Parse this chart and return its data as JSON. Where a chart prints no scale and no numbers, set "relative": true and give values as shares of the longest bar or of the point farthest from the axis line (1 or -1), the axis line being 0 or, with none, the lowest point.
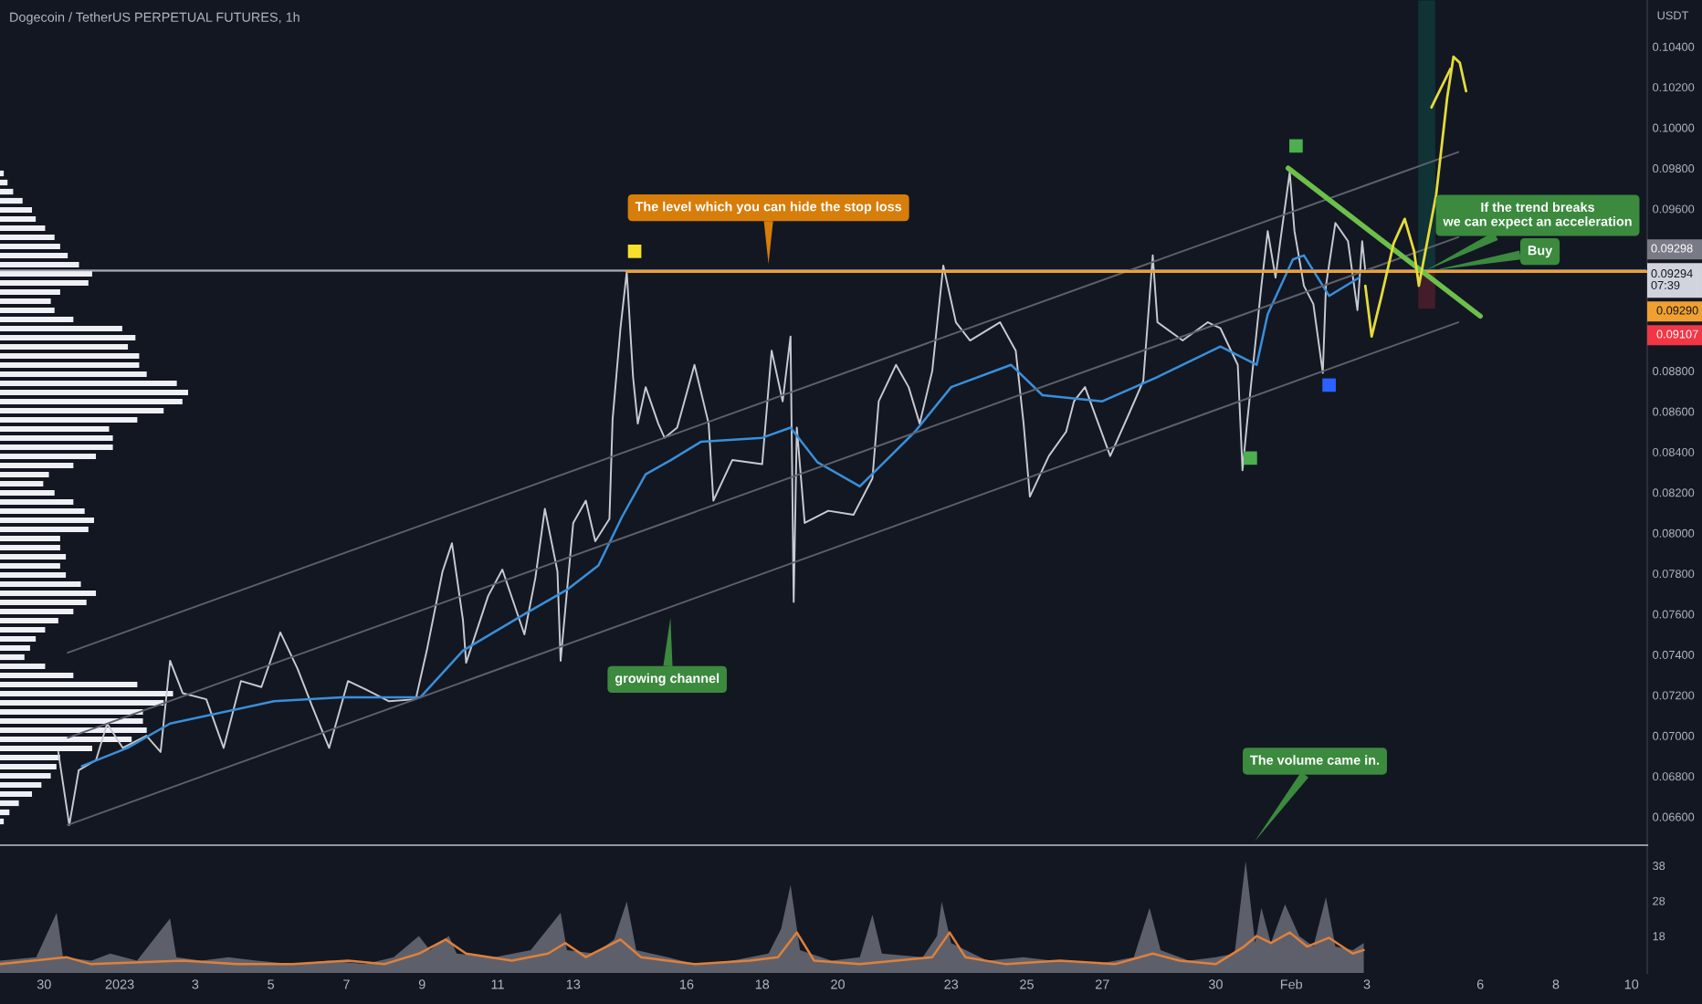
{
  "chart_data": [
    {
      "type": "line",
      "title": "Dogecoin / TetherUS PERPETUAL FUTURES, 1h",
      "ylabel": "USDT",
      "legend": "right",
      "xlim": [
        "2022-12-28T20:00",
        "2023-02-10T10:00"
      ],
      "ylim": [
        0.0646,
        0.1063
      ],
      "tick_labels": "y",
      "yticks": [
        {
          "value": 0.066,
          "label": "0.06600"
        },
        {
          "value": 0.068,
          "label": "0.06800"
        },
        {
          "value": 0.07,
          "label": "0.07000"
        },
        {
          "value": 0.072,
          "label": "0.07200"
        },
        {
          "value": 0.074,
          "label": "0.07400"
        },
        {
          "value": 0.076,
          "label": "0.07600"
        },
        {
          "value": 0.078,
          "label": "0.07800"
        },
        {
          "value": 0.08,
          "label": "0.08000"
        },
        {
          "value": 0.082,
          "label": "0.08200"
        },
        {
          "value": 0.084,
          "label": "0.08400"
        },
        {
          "value": 0.086,
          "label": "0.08600"
        },
        {
          "value": 0.088,
          "label": "0.08800"
        },
        {
          "value": 0.096,
          "label": "0.09600"
        },
        {
          "value": 0.098,
          "label": "0.09800"
        },
        {
          "value": 0.1,
          "label": "0.10000"
        },
        {
          "value": 0.102,
          "label": "0.10200"
        },
        {
          "value": 0.104,
          "label": "0.10400"
        }
      ],
      "series": [
        {
          "type": "line",
          "color": "#c7cad1",
          "x": [
            "2022-12-30T09:00",
            "2022-12-30T16:00",
            "2022-12-30T22:00",
            "2022-12-31T09:00",
            "2022-12-31T16:00",
            "2023-01-01T02:00",
            "2023-01-01T17:00",
            "2023-01-02T02:00",
            "2023-01-02T08:00",
            "2023-01-02T16:00",
            "2023-01-03T07:00",
            "2023-01-03T18:00",
            "2023-01-04T05:00",
            "2023-01-04T18:00",
            "2023-01-05T06:00",
            "2023-01-05T17:00",
            "2023-01-06T02:00",
            "2023-01-06T13:00",
            "2023-01-07T01:00",
            "2023-01-07T12:00",
            "2023-01-08T03:00",
            "2023-01-08T20:00",
            "2023-01-09T03:00",
            "2023-01-09T13:00",
            "2023-01-09T19:00",
            "2023-01-10T02:00",
            "2023-01-10T04:00",
            "2023-01-10T18:00",
            "2023-01-11T03:00",
            "2023-01-11T17:00",
            "2023-01-12T00:00",
            "2023-01-12T06:00",
            "2023-01-12T14:00",
            "2023-01-12T16:00",
            "2023-01-13T00:00",
            "2023-01-13T08:00",
            "2023-01-13T14:00",
            "2023-01-13T23:00",
            "2023-01-14T01:00",
            "2023-01-14T06:00",
            "2023-01-14T10:00",
            "2023-01-14T14:00",
            "2023-01-14T17:00",
            "2023-01-14T22:00",
            "2023-01-15T06:00",
            "2023-01-15T10:00",
            "2023-01-15T18:00",
            "2023-01-16T05:00",
            "2023-01-16T14:00",
            "2023-01-16T17:00",
            "2023-01-17T05:00",
            "2023-01-18T00:00",
            "2023-01-18T06:00",
            "2023-01-18T13:00",
            "2023-01-18T18:00",
            "2023-01-18T20:00",
            "2023-01-18T22:00",
            "2023-01-19T03:00",
            "2023-01-19T18:00",
            "2023-01-20T10:00",
            "2023-01-20T22:00",
            "2023-01-21T02:00",
            "2023-01-21T13:00",
            "2023-01-21T21:00",
            "2023-01-22T04:00",
            "2023-01-22T12:00",
            "2023-01-22T19:00",
            "2023-01-23T03:00",
            "2023-01-23T12:00",
            "2023-01-24T07:00",
            "2023-01-24T17:00",
            "2023-01-24T22:00",
            "2023-01-25T02:00",
            "2023-01-25T14:00",
            "2023-01-26T01:00",
            "2023-01-26T06:00",
            "2023-01-26T13:00",
            "2023-01-27T05:00",
            "2023-01-27T17:00",
            "2023-01-28T02:00",
            "2023-01-28T08:00",
            "2023-01-28T11:00",
            "2023-01-29T03:00",
            "2023-01-29T19:00",
            "2023-01-30T03:00",
            "2023-01-30T14:00",
            "2023-01-30T17:00",
            "2023-01-30T20:00",
            "2023-01-31T05:00",
            "2023-01-31T09:00",
            "2023-01-31T14:00",
            "2023-01-31T17:00",
            "2023-01-31T23:00",
            "2023-02-01T02:00",
            "2023-02-01T08:00",
            "2023-02-01T14:00",
            "2023-02-01T20:00",
            "2023-02-01T22:00",
            "2023-02-02T04:00",
            "2023-02-02T12:00",
            "2023-02-02T18:00",
            "2023-02-02T21:00",
            "2023-02-02T23:00"
          ],
          "values": [
            0.0692,
            0.0656,
            0.0683,
            0.0688,
            0.0706,
            0.0694,
            0.07,
            0.0692,
            0.0737,
            0.0721,
            0.0718,
            0.0694,
            0.0727,
            0.0724,
            0.0751,
            0.0733,
            0.0715,
            0.0694,
            0.0727,
            0.0723,
            0.0717,
            0.0718,
            0.0742,
            0.0781,
            0.0795,
            0.0757,
            0.0736,
            0.0769,
            0.0782,
            0.075,
            0.0778,
            0.0812,
            0.0781,
            0.0737,
            0.0805,
            0.0816,
            0.0796,
            0.0807,
            0.0856,
            0.0901,
            0.0929,
            0.0877,
            0.0854,
            0.0872,
            0.0854,
            0.0847,
            0.0852,
            0.0883,
            0.0854,
            0.0816,
            0.0836,
            0.0834,
            0.089,
            0.0865,
            0.0897,
            0.0766,
            0.0852,
            0.0805,
            0.0811,
            0.0809,
            0.0827,
            0.0865,
            0.0883,
            0.0872,
            0.0854,
            0.088,
            0.0932,
            0.0904,
            0.0895,
            0.0904,
            0.089,
            0.0854,
            0.0818,
            0.0838,
            0.085,
            0.0865,
            0.0872,
            0.0838,
            0.0859,
            0.0875,
            0.0937,
            0.0904,
            0.0895,
            0.0904,
            0.0901,
            0.0883,
            0.0831,
            0.0855,
            0.0922,
            0.0949,
            0.0926,
            0.0944,
            0.0978,
            0.0949,
            0.0922,
            0.0913,
            0.0879,
            0.0922,
            0.0953,
            0.0944,
            0.091,
            0.0944,
            0.09294
          ]
        },
        {
          "type": "line",
          "color": "#3a8fd9",
          "x": [
            "2022-12-31T00:00",
            "2023-01-01T05:00",
            "2023-01-02T08:00",
            "2023-01-05T02:00",
            "2023-01-06T21:00",
            "2023-01-08T23:00",
            "2023-01-10T02:00",
            "2023-01-11T17:00",
            "2023-01-12T20:00",
            "2023-01-13T16:00",
            "2023-01-14T07:00",
            "2023-01-14T22:00",
            "2023-01-15T14:00",
            "2023-01-16T09:00",
            "2023-01-18T00:00",
            "2023-01-18T18:00",
            "2023-01-19T11:00",
            "2023-01-20T14:00",
            "2023-01-22T01:00",
            "2023-01-23T00:00",
            "2023-01-24T14:00",
            "2023-01-25T10:00",
            "2023-01-27T00:00",
            "2023-01-28T11:00",
            "2023-01-30T03:00",
            "2023-01-31T02:00",
            "2023-01-31T09:00",
            "2023-02-01T01:00",
            "2023-02-01T08:00",
            "2023-02-02T00:00",
            "2023-02-02T19:00"
          ],
          "values": [
            0.0685,
            0.0694,
            0.0706,
            0.0717,
            0.0719,
            0.0719,
            0.0742,
            0.076,
            0.0772,
            0.0784,
            0.0808,
            0.0829,
            0.0836,
            0.0845,
            0.0847,
            0.0852,
            0.0835,
            0.0823,
            0.085,
            0.0872,
            0.0883,
            0.0868,
            0.0865,
            0.0877,
            0.0892,
            0.0883,
            0.0908,
            0.0935,
            0.0937,
            0.0917,
            0.0926
          ]
        },
        {
          "type": "line",
          "color": "#5d606b",
          "x": [
            "2022-12-30T15:00",
            "2023-02-05T10:00"
          ],
          "values": [
            0.0741,
            0.0988
          ]
        },
        {
          "type": "line",
          "color": "#5d606b",
          "x": [
            "2022-12-30T15:00",
            "2023-02-05T10:00"
          ],
          "values": [
            0.0699,
            0.0946
          ]
        },
        {
          "type": "line",
          "color": "#5d606b",
          "x": [
            "2022-12-30T15:00",
            "2023-02-05T10:00"
          ],
          "values": [
            0.0656,
            0.0904
          ]
        },
        {
          "type": "line",
          "color": "#f0a030",
          "name": "0.09290",
          "x": [
            "2023-01-14T10:00",
            "2023-02-10T10:00"
          ],
          "values": [
            0.0929,
            0.0929
          ]
        },
        {
          "type": "line",
          "color": "#6cc04a",
          "x": [
            "2023-01-31T22:00",
            "2023-02-06T00:00"
          ],
          "values": [
            0.098,
            0.0907
          ]
        },
        {
          "type": "line",
          "color": "#e5dc3a",
          "x": [
            "2023-02-02T23:00",
            "2023-02-03T03:00",
            "2023-02-03T09:00",
            "2023-02-03T17:00",
            "2023-02-04T00:00",
            "2023-02-04T06:00",
            "2023-02-04T09:00",
            "2023-02-04T20:00",
            "2023-02-05T03:00",
            "2023-02-05T07:00",
            "2023-02-05T11:00",
            "2023-02-05T15:00"
          ],
          "values": [
            0.0922,
            0.0897,
            0.0916,
            0.0943,
            0.0955,
            0.0939,
            0.0922,
            0.0967,
            0.1015,
            0.1035,
            0.1032,
            0.1018
          ]
        },
        {
          "type": "line",
          "color": "#e5dc3a",
          "x": [
            "2023-02-04T17:00",
            "2023-02-05T05:00"
          ],
          "values": [
            0.101,
            0.1029
          ]
        },
        {
          "type": "bar",
          "color": "#089981",
          "x": [
            "2023-02-04T14:00"
          ],
          "base": [
            0.09298
          ],
          "values": [
            0.0133
          ]
        },
        {
          "type": "bar",
          "color": "#f23645",
          "name": "0.09107",
          "x": [
            "2023-02-04T14:00"
          ],
          "base": [
            0.09107
          ],
          "values": [
            0.00191
          ]
        },
        {
          "type": "scatter",
          "marker": "square",
          "colors": [
            "#f5e12a",
            "#4caf50",
            "#4caf50",
            "#2962ff"
          ],
          "x": [
            "2023-01-14T15:00",
            "2023-01-30T22:00",
            "2023-02-01T03:00",
            "2023-02-02T00:00"
          ],
          "values": [
            0.0939,
            0.0837,
            0.0991,
            0.0873
          ]
        }
      ],
      "ref_lines": [
        {
          "axis": "y",
          "value": 0.09294,
          "label": "0.09294\n07:39",
          "color": "#d1d4dc"
        },
        {
          "axis": "y",
          "value": 0.09298,
          "label": "0.09298",
          "color": "#787b86"
        }
      ],
      "annotations": [
        {
          "text": "The level which you can hide the stop loss",
          "x": "2023-01-18T04:00",
          "y": 0.0929
        },
        {
          "text": "growing channel",
          "x": "2023-01-15T14:00",
          "y": 0.0762
        },
        "If the trend breaks\nwe can expect an acceleration",
        {
          "text": "Buy",
          "x": "2023-02-04T14:00",
          "y": 0.0929
        },
        "The volume came in."
      ]
    },
    {
      "type": "bar",
      "orientation": "horizontal",
      "relative": true,
      "color": "#eef0f5",
      "categories": [
        null,
        null,
        null,
        null,
        null,
        null,
        null,
        null,
        null,
        null,
        null,
        null,
        null,
        null,
        null,
        null,
        null,
        null,
        null,
        null,
        null,
        null,
        null,
        null,
        null,
        null,
        null,
        null,
        null,
        null,
        null,
        null,
        null,
        null,
        null,
        null,
        null,
        null,
        null,
        null,
        null,
        null,
        null,
        null,
        null,
        null,
        null,
        null,
        null,
        null,
        null,
        null,
        null,
        null,
        null,
        null,
        null,
        null,
        null,
        null,
        null,
        null,
        null,
        null,
        null,
        null,
        null,
        null,
        null,
        null,
        null,
        null
      ],
      "values": [
        0.02,
        0.04,
        0.07,
        0.12,
        0.17,
        0.19,
        0.24,
        0.29,
        0.32,
        0.36,
        0.42,
        0.49,
        0.47,
        0.32,
        0.27,
        0.29,
        0.39,
        0.65,
        0.72,
        0.68,
        0.74,
        0.74,
        0.78,
        0.94,
        1,
        0.97,
        0.87,
        0.73,
        0.58,
        0.6,
        0.6,
        0.51,
        0.39,
        0.26,
        0.23,
        0.29,
        0.39,
        0.45,
        0.5,
        0.47,
        0.32,
        0.32,
        0.35,
        0.32,
        0.35,
        0.43,
        0.51,
        0.46,
        0.39,
        0.31,
        0.24,
        0.19,
        0.16,
        0.13,
        0.24,
        0.39,
        0.73,
        0.92,
        0.87,
        0.76,
        0.76,
        0.78,
        0.7,
        0.49,
        0.32,
        0.3,
        0.27,
        0.22,
        0.17,
        0.1,
        0.05,
        0.02
      ]
    },
    {
      "type": "area",
      "xlim": [
        "2022-12-28T20:00",
        "2023-02-10T10:00"
      ],
      "ylim": [
        7.5,
        43.8
      ],
      "yticks": [
        18,
        28,
        38
      ],
      "xticks": [
        {
          "value": "2022-12-30",
          "label": "30"
        },
        {
          "value": "2023-01-01",
          "label": "2023"
        },
        {
          "value": "2023-01-03",
          "label": "3"
        },
        {
          "value": "2023-01-05",
          "label": "5"
        },
        {
          "value": "2023-01-07",
          "label": "7"
        },
        {
          "value": "2023-01-09",
          "label": "9"
        },
        {
          "value": "2023-01-11",
          "label": "11"
        },
        {
          "value": "2023-01-13",
          "label": "13"
        },
        {
          "value": "2023-01-16",
          "label": "16"
        },
        {
          "value": "2023-01-18",
          "label": "18"
        },
        {
          "value": "2023-01-20",
          "label": "20"
        },
        {
          "value": "2023-01-23",
          "label": "23"
        },
        {
          "value": "2023-01-25",
          "label": "25"
        },
        {
          "value": "2023-01-27",
          "label": "27"
        },
        {
          "value": "2023-01-30",
          "label": "30"
        },
        {
          "value": "2023-02-01",
          "label": "Feb"
        },
        {
          "value": "2023-02-03",
          "label": "3"
        },
        {
          "value": "2023-02-06",
          "label": "6"
        },
        {
          "value": "2023-02-08",
          "label": "8"
        },
        {
          "value": "2023-02-10",
          "label": "10"
        }
      ],
      "series": [
        {
          "type": "area",
          "color": "#5d606b",
          "x": [
            "2022-12-28T20:00",
            "2022-12-29T19:00",
            "2022-12-30T08:00",
            "2022-12-30T12:00",
            "2022-12-31T06:00",
            "2022-12-31T18:00",
            "2023-01-01T11:00",
            "2023-01-02T08:00",
            "2023-01-02T12:00",
            "2023-01-03T04:00",
            "2023-01-03T21:00",
            "2023-01-04T15:00",
            "2023-01-05T14:00",
            "2023-01-06T13:00",
            "2023-01-07T12:00",
            "2023-01-08T06:00",
            "2023-01-08T22:00",
            "2023-01-09T05:00",
            "2023-01-09T17:00",
            "2023-01-09T22:00",
            "2023-01-10T22:00",
            "2023-01-11T21:00",
            "2023-01-12T16:00",
            "2023-01-12T20:00",
            "2023-01-13T14:00",
            "2023-01-14T02:00",
            "2023-01-14T10:00",
            "2023-01-14T16:00",
            "2023-01-15T12:00",
            "2023-01-16T05:00",
            "2023-01-17T05:00",
            "2023-01-18T04:00",
            "2023-01-18T12:00",
            "2023-01-18T18:00",
            "2023-01-19T00:00",
            "2023-01-19T20:00",
            "2023-01-20T14:00",
            "2023-01-20T22:00",
            "2023-01-21T04:00",
            "2023-01-22T06:00",
            "2023-01-22T15:00",
            "2023-01-22T18:00",
            "2023-01-23T00:00",
            "2023-01-23T23:00",
            "2023-01-24T22:00",
            "2023-01-25T16:00",
            "2023-01-26T21:00",
            "2023-01-27T20:00",
            "2023-01-28T06:00",
            "2023-01-28T13:00",
            "2023-01-29T07:00",
            "2023-01-30T00:00",
            "2023-01-30T12:00",
            "2023-01-30T19:00",
            "2023-01-31T01:00",
            "2023-01-31T05:00",
            "2023-01-31T11:00",
            "2023-01-31T20:00",
            "2023-02-01T05:00",
            "2023-02-01T14:00",
            "2023-02-01T22:00",
            "2023-02-02T04:00",
            "2023-02-02T15:00",
            "2023-02-02T22:00"
          ],
          "values": [
            11,
            12,
            24.6,
            12,
            11,
            13,
            11,
            23,
            12,
            11,
            12,
            11,
            10,
            11,
            10,
            12,
            18,
            14,
            18,
            13,
            12,
            14,
            24.6,
            14,
            13,
            17,
            27.8,
            14,
            12,
            10,
            11,
            13,
            20,
            32.5,
            14,
            11,
            12,
            24,
            13,
            12,
            18,
            27.8,
            16,
            11,
            12,
            11,
            10,
            12,
            26,
            14,
            11,
            12,
            13,
            39.3,
            16,
            26,
            16,
            27,
            18,
            15,
            29,
            15,
            14,
            16
          ]
        },
        {
          "type": "line",
          "color": "#e0803a",
          "x": [
            "2022-12-28T20:00",
            "2022-12-30T14:00",
            "2022-12-31T06:00",
            "2023-01-02T16:00",
            "2023-01-04T03:00",
            "2023-01-05T14:00",
            "2023-01-07T01:00",
            "2023-01-08T00:00",
            "2023-01-08T22:00",
            "2023-01-09T15:00",
            "2023-01-10T04:00",
            "2023-01-11T09:00",
            "2023-01-12T08:00",
            "2023-01-12T19:00",
            "2023-01-13T08:00",
            "2023-01-14T06:00",
            "2023-01-14T19:00",
            "2023-01-16T05:00",
            "2023-01-17T16:00",
            "2023-01-18T10:00",
            "2023-01-18T22:00",
            "2023-01-19T09:00",
            "2023-01-20T14:00",
            "2023-01-21T13:00",
            "2023-01-22T12:00",
            "2023-01-22T23:00",
            "2023-01-23T09:00",
            "2023-01-24T11:00",
            "2023-01-25T21:00",
            "2023-01-27T08:00",
            "2023-01-28T08:00",
            "2023-01-29T01:00",
            "2023-01-30T00:00",
            "2023-01-30T18:00",
            "2023-01-31T02:00",
            "2023-01-31T11:00",
            "2023-01-31T23:00",
            "2023-02-01T10:00",
            "2023-02-02T00:00",
            "2023-02-02T15:00",
            "2023-02-02T22:00"
          ],
          "values": [
            10,
            12,
            10,
            11,
            10,
            10,
            11,
            10,
            13,
            17,
            13,
            11,
            13,
            16,
            12,
            17,
            12,
            10,
            11,
            12,
            19,
            11,
            10,
            11,
            12,
            19,
            12,
            10,
            11,
            10,
            13,
            11,
            10,
            15,
            18,
            16,
            19,
            15,
            17.5,
            13,
            14
          ]
        }
      ]
    }
  ]
}
